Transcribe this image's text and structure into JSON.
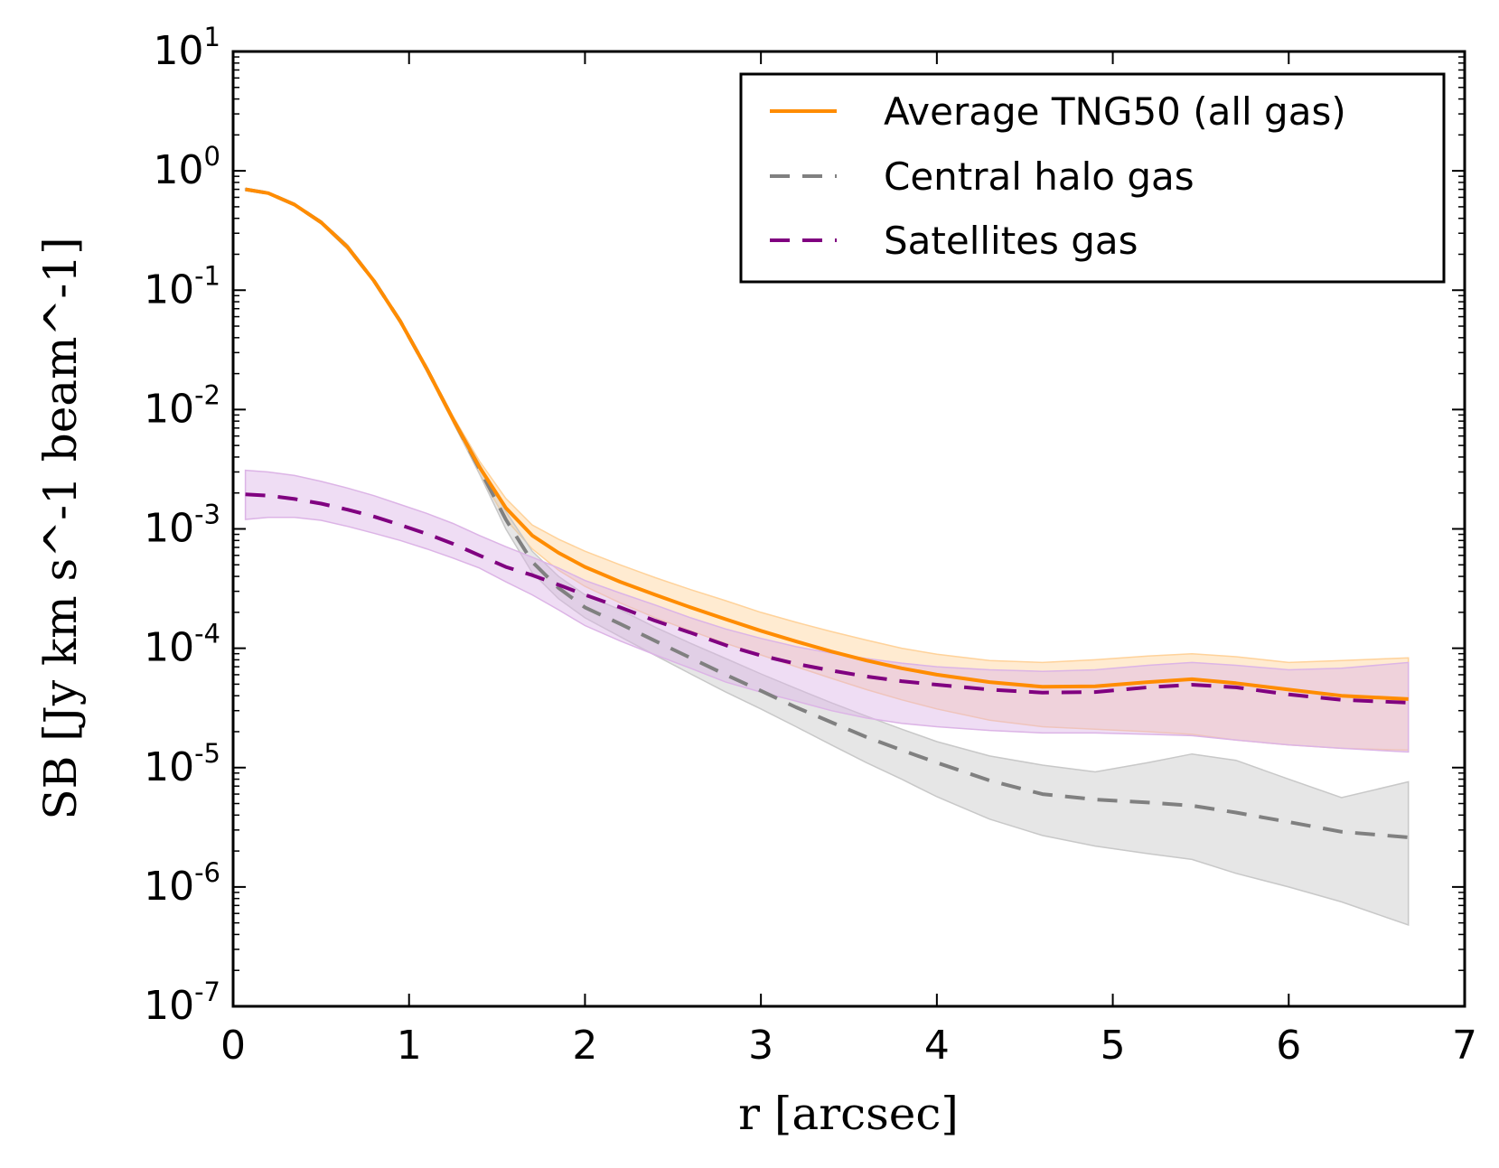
{
  "chart_data": {
    "type": "line",
    "xlabel": "r [arcsec]",
    "ylabel": "SB [Jy km s^-1 beam^-1]",
    "xlim": [
      0,
      7
    ],
    "ylim_log10": [
      -7,
      1
    ],
    "yscale": "log",
    "x_ticks": [
      "0",
      "1",
      "2",
      "3",
      "4",
      "5",
      "6",
      "7"
    ],
    "y_ticks": [
      {
        "base": "10",
        "exp": "1"
      },
      {
        "base": "10",
        "exp": "0"
      },
      {
        "base": "10",
        "exp": "-1"
      },
      {
        "base": "10",
        "exp": "-2"
      },
      {
        "base": "10",
        "exp": "-3"
      },
      {
        "base": "10",
        "exp": "-4"
      },
      {
        "base": "10",
        "exp": "-5"
      },
      {
        "base": "10",
        "exp": "-6"
      },
      {
        "base": "10",
        "exp": "-7"
      }
    ],
    "legend_position": "top-right",
    "x": [
      0.07,
      0.2,
      0.35,
      0.5,
      0.65,
      0.8,
      0.95,
      1.1,
      1.25,
      1.4,
      1.55,
      1.7,
      1.85,
      2.0,
      2.2,
      2.4,
      2.6,
      2.8,
      3.0,
      3.2,
      3.4,
      3.6,
      3.8,
      4.0,
      4.3,
      4.6,
      4.9,
      5.2,
      5.45,
      5.7,
      6.0,
      6.3,
      6.68
    ],
    "series": [
      {
        "name": "Average TNG50 (all gas)",
        "color": "#ff8c00",
        "dash": "solid",
        "band_color": "#ffd29a",
        "values": [
          0.7,
          0.65,
          0.52,
          0.37,
          0.23,
          0.12,
          0.055,
          0.022,
          0.0083,
          0.0033,
          0.0015,
          0.00088,
          0.00063,
          0.00048,
          0.00036,
          0.00028,
          0.00022,
          0.000175,
          0.00014,
          0.000114,
          9.4e-05,
          7.9e-05,
          6.8e-05,
          6e-05,
          5.2e-05,
          4.75e-05,
          4.8e-05,
          5.2e-05,
          5.5e-05,
          5.1e-05,
          4.5e-05,
          4e-05,
          3.75e-05
        ],
        "band_low": [
          0.69,
          0.64,
          0.51,
          0.36,
          0.22,
          0.117,
          0.053,
          0.021,
          0.0078,
          0.0029,
          0.0012,
          0.00068,
          0.00045,
          0.00033,
          0.00024,
          0.00018,
          0.00014,
          0.00011,
          8.8e-05,
          7e-05,
          5.6e-05,
          4.5e-05,
          3.7e-05,
          3.1e-05,
          2.5e-05,
          2.2e-05,
          2.1e-05,
          2e-05,
          1.9e-05,
          1.7e-05,
          1.55e-05,
          1.45e-05,
          1.4e-05
        ],
        "band_high": [
          0.71,
          0.66,
          0.53,
          0.38,
          0.24,
          0.123,
          0.057,
          0.023,
          0.0088,
          0.0037,
          0.0018,
          0.00108,
          0.00082,
          0.00065,
          0.0005,
          0.00039,
          0.00031,
          0.00025,
          0.0002,
          0.000165,
          0.000138,
          0.000117,
          0.0001,
          8.9e-05,
          7.9e-05,
          7.6e-05,
          8e-05,
          8.6e-05,
          9e-05,
          8.5e-05,
          7.6e-05,
          7.9e-05,
          8.3e-05
        ]
      },
      {
        "name": "Central halo gas",
        "color": "#808080",
        "dash": "dashed",
        "band_color": "#c8c8c8",
        "values": [
          0.7,
          0.65,
          0.52,
          0.37,
          0.23,
          0.12,
          0.055,
          0.022,
          0.0083,
          0.0032,
          0.0012,
          0.00053,
          0.00032,
          0.00022,
          0.00016,
          0.000115,
          8.3e-05,
          6e-05,
          4.4e-05,
          3.2e-05,
          2.4e-05,
          1.8e-05,
          1.4e-05,
          1.1e-05,
          7.8e-06,
          6e-06,
          5.4e-06,
          5.1e-06,
          4.8e-06,
          4.2e-06,
          3.5e-06,
          2.9e-06,
          2.6e-06
        ],
        "band_low": [
          0.69,
          0.64,
          0.51,
          0.36,
          0.22,
          0.117,
          0.053,
          0.021,
          0.0079,
          0.0029,
          0.001,
          0.00043,
          0.00026,
          0.00018,
          0.000125,
          8.7e-05,
          6.1e-05,
          4.3e-05,
          3.1e-05,
          2.2e-05,
          1.55e-05,
          1.1e-05,
          8e-06,
          5.7e-06,
          3.7e-06,
          2.7e-06,
          2.2e-06,
          1.9e-06,
          1.7e-06,
          1.3e-06,
          1e-06,
          7.5e-07,
          4.8e-07
        ],
        "band_high": [
          0.71,
          0.66,
          0.53,
          0.38,
          0.24,
          0.123,
          0.057,
          0.023,
          0.0087,
          0.0035,
          0.0014,
          0.00065,
          0.0004,
          0.00028,
          0.00021,
          0.00015,
          0.00011,
          8.2e-05,
          6.1e-05,
          4.6e-05,
          3.5e-05,
          2.7e-05,
          2.1e-05,
          1.65e-05,
          1.25e-05,
          1.05e-05,
          9.2e-06,
          1.1e-05,
          1.3e-05,
          1.15e-05,
          8e-06,
          5.6e-06,
          7.6e-06
        ]
      },
      {
        "name": "Satellites gas",
        "color": "#800080",
        "dash": "dashed",
        "band_color": "#dcb4e6",
        "values": [
          0.00195,
          0.0019,
          0.00178,
          0.00163,
          0.00145,
          0.00127,
          0.00108,
          0.00091,
          0.00075,
          0.0006,
          0.00048,
          0.00041,
          0.00034,
          0.00028,
          0.00022,
          0.00017,
          0.000135,
          0.000106,
          8.7e-05,
          7.4e-05,
          6.5e-05,
          5.8e-05,
          5.3e-05,
          4.95e-05,
          4.5e-05,
          4.25e-05,
          4.3e-05,
          4.7e-05,
          4.95e-05,
          4.7e-05,
          4.1e-05,
          3.7e-05,
          3.5e-05
        ],
        "band_low": [
          0.0012,
          0.00125,
          0.00125,
          0.00118,
          0.00105,
          0.00092,
          0.0008,
          0.00068,
          0.00057,
          0.00047,
          0.00036,
          0.00028,
          0.00021,
          0.000155,
          0.000115,
          8.8e-05,
          6.8e-05,
          5.2e-05,
          4.3e-05,
          3.6e-05,
          3e-05,
          2.6e-05,
          2.35e-05,
          2.2e-05,
          2.05e-05,
          1.95e-05,
          1.95e-05,
          1.9e-05,
          1.85e-05,
          1.7e-05,
          1.55e-05,
          1.45e-05,
          1.35e-05
        ],
        "band_high": [
          0.0031,
          0.003,
          0.0028,
          0.0025,
          0.0022,
          0.0019,
          0.0016,
          0.00135,
          0.00111,
          0.00088,
          0.00071,
          0.00058,
          0.00047,
          0.00037,
          0.00029,
          0.00023,
          0.00018,
          0.000145,
          0.000121,
          0.000103,
          9.1e-05,
          8.2e-05,
          7.5e-05,
          7e-05,
          6.6e-05,
          6.4e-05,
          6.6e-05,
          7.2e-05,
          7.6e-05,
          7.2e-05,
          6.6e-05,
          6.8e-05,
          7.6e-05
        ]
      }
    ]
  }
}
